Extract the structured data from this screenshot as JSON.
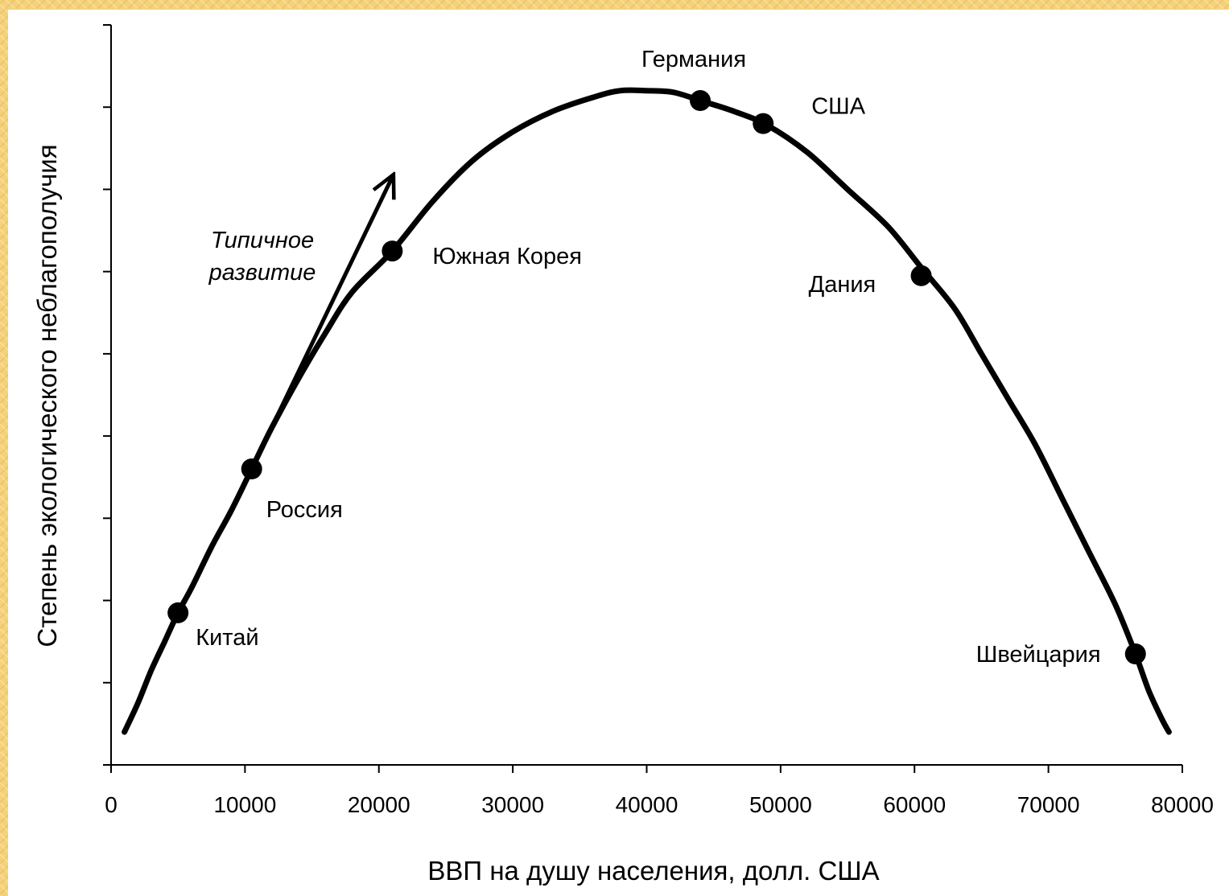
{
  "chart_data": {
    "type": "line",
    "title": "",
    "xlabel": "ВВП на душу населения, долл. США",
    "ylabel": "Степень экологического неблагополучия",
    "xlim": [
      0,
      80000
    ],
    "ylim": [
      0,
      9
    ],
    "x_ticks": [
      "0",
      "10000",
      "20000",
      "30000",
      "40000",
      "50000",
      "60000",
      "70000",
      "80000"
    ],
    "y_ticks_labeled": false,
    "y_tick_count": 9,
    "grid": false,
    "line_color": "#000000",
    "curve": {
      "x": [
        1000,
        2000,
        3000,
        4000,
        5000,
        6000,
        7500,
        9000,
        10500,
        12000,
        14000,
        16000,
        18000,
        21000,
        24000,
        27000,
        30000,
        33000,
        36000,
        38000,
        40000,
        42000,
        44000,
        46500,
        49000,
        52000,
        55000,
        58000,
        60500,
        63000,
        65000,
        67000,
        69000,
        71000,
        73000,
        75000,
        76500,
        77500,
        78500,
        79000
      ],
      "y": [
        0.4,
        0.75,
        1.15,
        1.5,
        1.85,
        2.15,
        2.65,
        3.1,
        3.6,
        4.1,
        4.7,
        5.25,
        5.75,
        6.25,
        6.85,
        7.35,
        7.7,
        7.95,
        8.12,
        8.2,
        8.2,
        8.18,
        8.08,
        7.95,
        7.78,
        7.45,
        7.0,
        6.55,
        6.05,
        5.55,
        5.0,
        4.45,
        3.9,
        3.25,
        2.6,
        1.95,
        1.35,
        0.9,
        0.55,
        0.4
      ]
    },
    "points": [
      {
        "label": "Китай",
        "x": 5000,
        "y": 1.85
      },
      {
        "label": "Россия",
        "x": 10500,
        "y": 3.6
      },
      {
        "label": "Южная Корея",
        "x": 21000,
        "y": 6.25
      },
      {
        "label": "Германия",
        "x": 44000,
        "y": 8.08
      },
      {
        "label": "США",
        "x": 48700,
        "y": 7.8
      },
      {
        "label": "Дания",
        "x": 60500,
        "y": 5.95
      },
      {
        "label": "Швейцария",
        "x": 76500,
        "y": 1.35
      }
    ],
    "arrow": {
      "label_line1": "Типичное",
      "label_line2": "развитие",
      "from": {
        "x": 10500,
        "y": 3.6
      },
      "to": {
        "x": 21000,
        "y": 7.15
      }
    }
  }
}
